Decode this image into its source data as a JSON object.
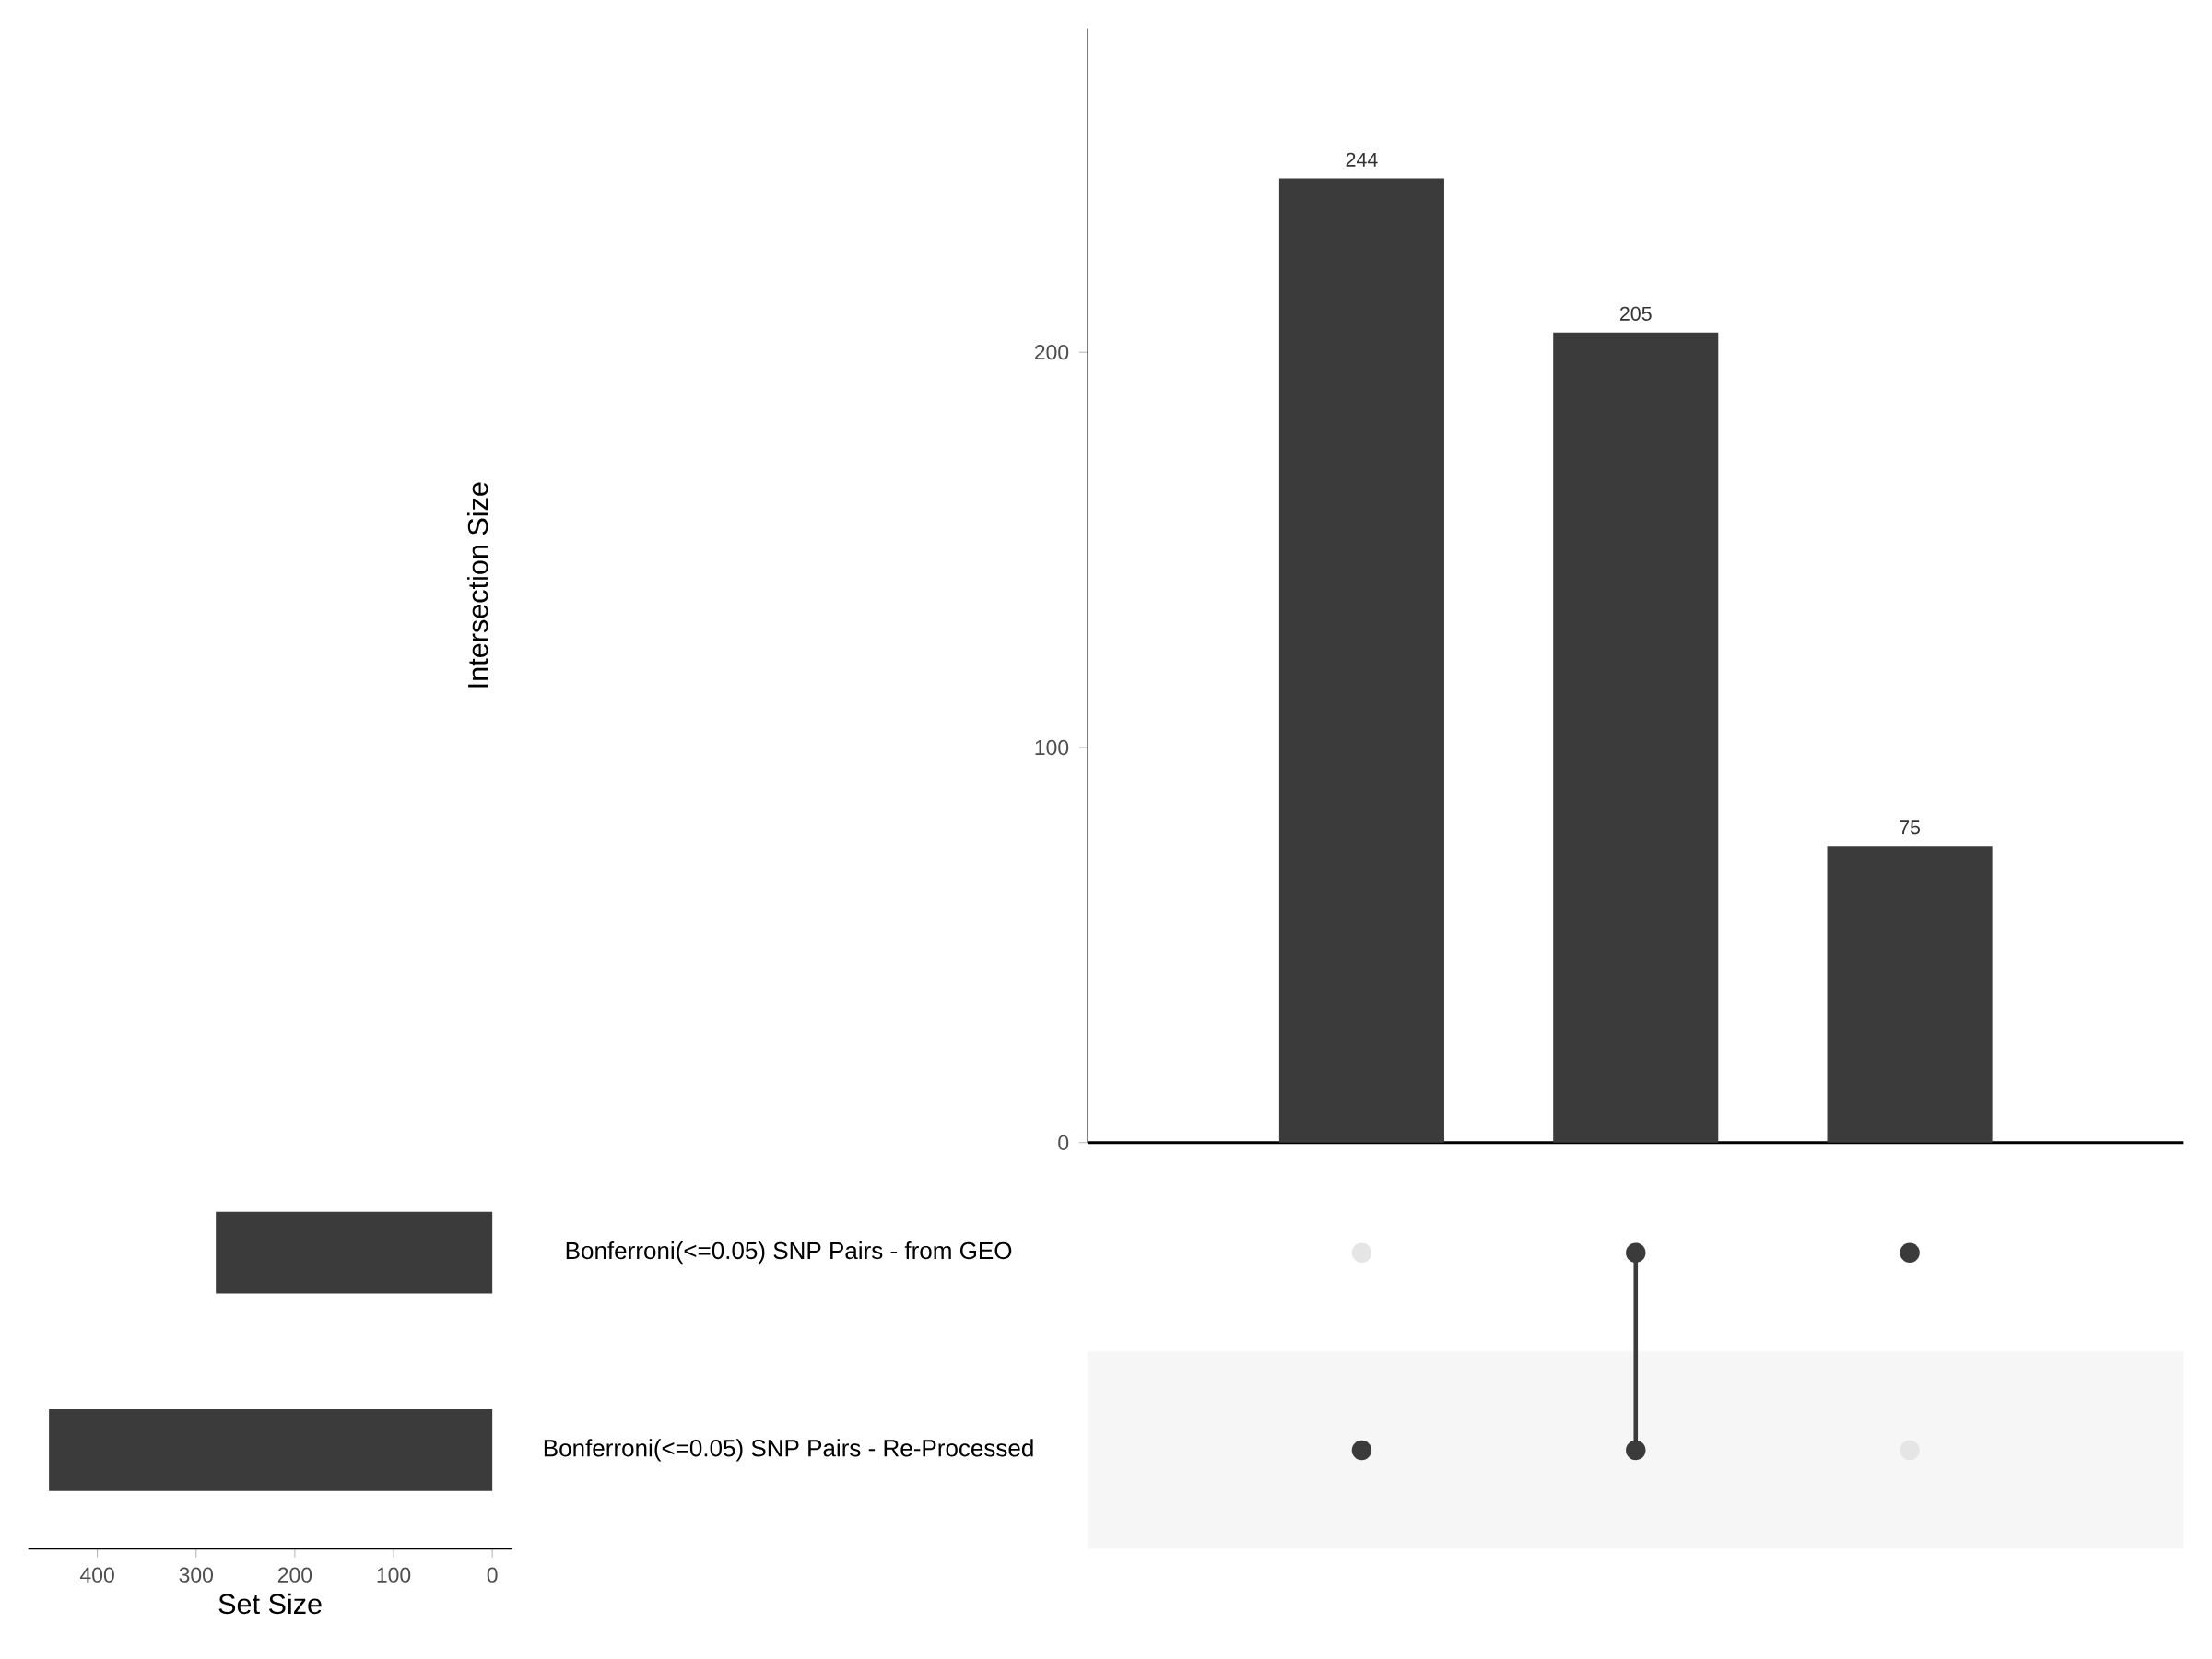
{
  "chart_data": [
    {
      "type": "bar",
      "categories": [
        null,
        null,
        null
      ],
      "values": [
        244,
        205,
        75
      ],
      "color": "#3b3b3b",
      "ylim": [
        0,
        282
      ],
      "yticks": [
        0,
        100,
        200
      ],
      "ylabel": "Intersection Size",
      "data_labels": true,
      "tick_labels": "y"
    },
    {
      "type": "bar",
      "orientation": "horizontal",
      "categories": [
        "Bonferroni(<=0.05) SNP Pairs - from GEO",
        "Bonferroni(<=0.05) SNP Pairs - Re-Processed"
      ],
      "values": [
        280,
        449
      ],
      "color": "#3b3b3b",
      "xlim": [
        470,
        -20
      ],
      "xticks": [
        400,
        300,
        200,
        100,
        0
      ],
      "xlabel": "Set Size"
    },
    {
      "type": "other",
      "categories": [
        null,
        null,
        null
      ],
      "y_categories": [
        null,
        null
      ],
      "cells": [
        [
          false,
          true,
          true
        ],
        [
          true,
          true,
          false
        ]
      ],
      "color": "#3b3b3b"
    }
  ]
}
